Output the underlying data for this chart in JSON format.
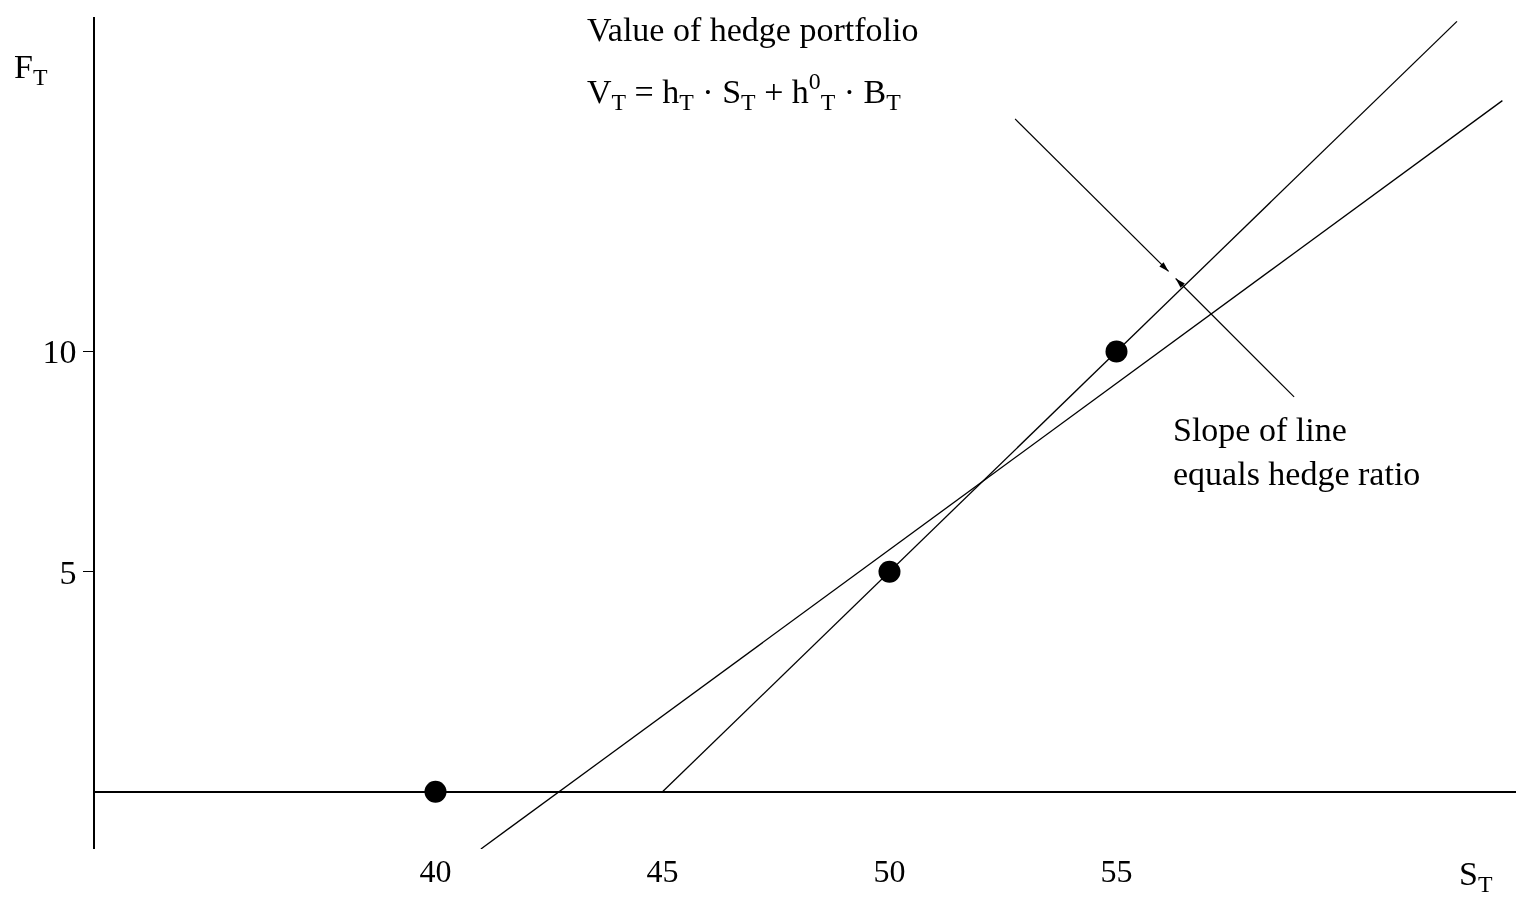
{
  "chart_data": {
    "type": "scatter",
    "xlabel": "S$_{T}$",
    "ylabel": "F$_{T}$",
    "annotations": [
      "Value of hedge portfolio",
      "V$_{T}$ = h$_{T}$ · S$_{T}$ + h$^{0}$$_{T}$ · B$_{T}$",
      "Slope of line\nequals hedge ratio"
    ],
    "series": [
      {
        "color": "#000000",
        "marker": "circle",
        "x": [
          40,
          50,
          55
        ],
        "values": [
          0,
          5,
          10
        ]
      },
      {
        "type": "line",
        "color": "#000000",
        "marker": "none",
        "x": [
          45,
          62.5
        ],
        "values": [
          0,
          17.5
        ]
      },
      {
        "type": "line",
        "color": "#000000",
        "marker": "none",
        "x": [
          41.0,
          63.5
        ],
        "values": [
          -1.3,
          15.7
        ]
      }
    ],
    "xlim": [
      32.5,
      63.8
    ],
    "ylim": [
      -1.3,
      17.6
    ],
    "xticks": [
      40,
      45,
      50,
      55
    ],
    "yticks": [
      5,
      10
    ],
    "grid": false,
    "legend": false
  }
}
